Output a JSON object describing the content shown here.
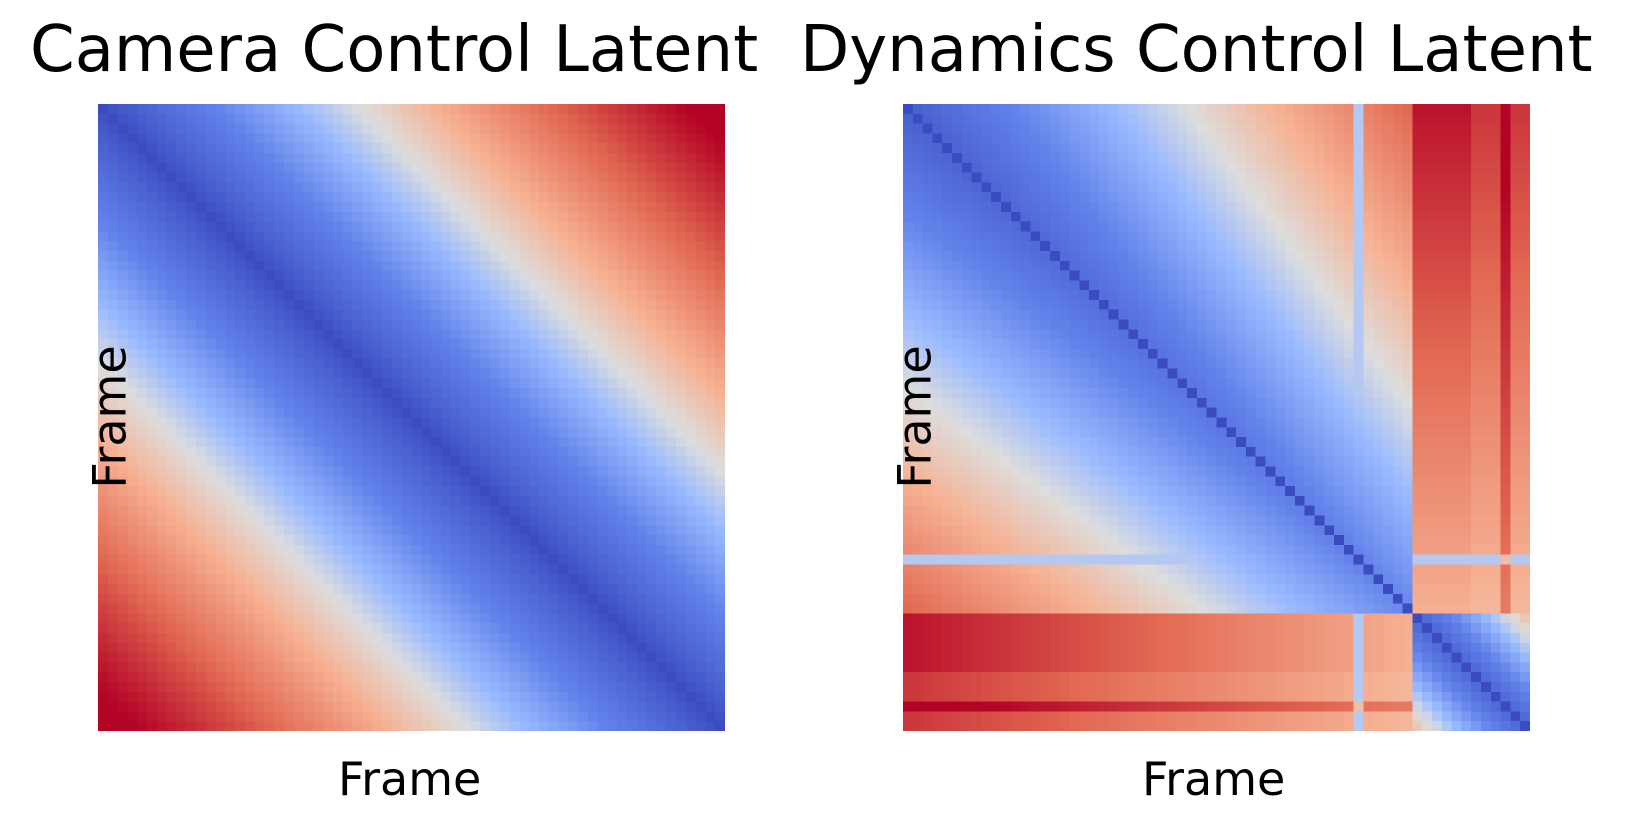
{
  "chart_data": [
    {
      "type": "heatmap",
      "title": "Camera Control Latent",
      "xlabel": "Frame",
      "ylabel": "Frame",
      "grid": false,
      "ticks": false,
      "legend": "none",
      "colormap": "coolwarm",
      "colors": {
        "low": "#3b4cc0",
        "mid": "#dddddd",
        "high": "#b40426"
      },
      "n": 64,
      "pattern": "smooth-band",
      "description_values": {
        "diagonal": 0.0,
        "corner_min": 1.0
      }
    },
    {
      "type": "heatmap",
      "title": "Dynamics Control Latent",
      "xlabel": "Frame",
      "ylabel": "Frame",
      "grid": false,
      "ticks": false,
      "legend": "none",
      "colormap": "coolwarm",
      "colors": {
        "low": "#3b4cc0",
        "mid": "#dddddd",
        "high": "#b40426"
      },
      "n": 64,
      "pattern": "block-structured",
      "description_values": {
        "diagonal": 0.0,
        "corner_min": 1.0
      }
    }
  ]
}
